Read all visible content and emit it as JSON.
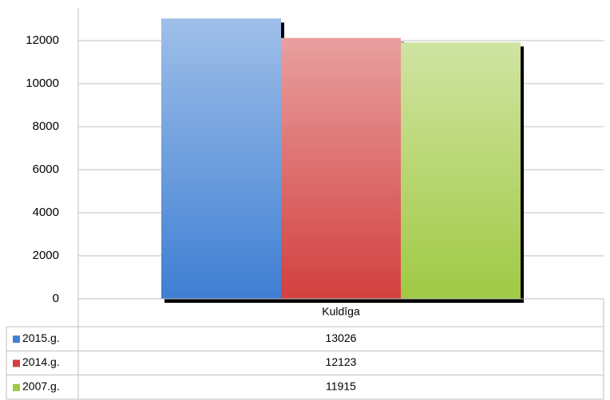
{
  "chart_data": {
    "type": "bar",
    "categories": [
      "Kuldīga"
    ],
    "series": [
      {
        "name": "2015.g.",
        "color": "#3f7fd3",
        "values": [
          13026
        ]
      },
      {
        "name": "2014.g.",
        "color": "#d2403f",
        "values": [
          12123
        ]
      },
      {
        "name": "2007.g.",
        "color": "#a0c944",
        "values": [
          11915
        ]
      }
    ],
    "ylim": [
      0,
      13500
    ],
    "yticks": [
      0,
      2000,
      4000,
      6000,
      8000,
      10000,
      12000
    ],
    "grid": true
  }
}
